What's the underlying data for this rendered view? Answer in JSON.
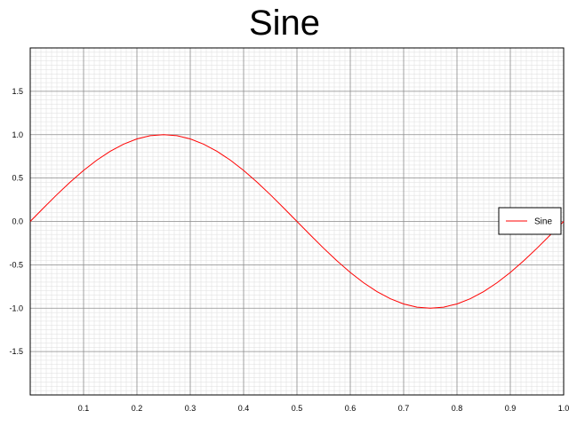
{
  "chart_data": {
    "type": "line",
    "title": "Sine",
    "xlabel": "",
    "ylabel": "",
    "xlim": [
      0,
      1
    ],
    "ylim": [
      -2,
      2
    ],
    "x_ticks": [
      0.1,
      0.2,
      0.3,
      0.4,
      0.5,
      0.6,
      0.7,
      0.8,
      0.9,
      1.0
    ],
    "x_tick_labels": [
      "0.1",
      "0.2",
      "0.3",
      "0.4",
      "0.5",
      "0.6",
      "0.7",
      "0.8",
      "0.9",
      "1.0"
    ],
    "y_ticks": [
      -1.5,
      -1.0,
      -0.5,
      0.0,
      0.5,
      1.0,
      1.5
    ],
    "y_tick_labels": [
      "-1.5",
      "-1.0",
      "-0.5",
      "0.0",
      "0.5",
      "1.0",
      "1.5"
    ],
    "grid": true,
    "legend_position": "right",
    "series": [
      {
        "name": "Sine",
        "color": "#ff0000",
        "x": [
          0.0,
          0.025,
          0.05,
          0.075,
          0.1,
          0.125,
          0.15,
          0.175,
          0.2,
          0.225,
          0.25,
          0.275,
          0.3,
          0.325,
          0.35,
          0.375,
          0.4,
          0.425,
          0.45,
          0.475,
          0.5,
          0.525,
          0.55,
          0.575,
          0.6,
          0.625,
          0.65,
          0.675,
          0.7,
          0.725,
          0.75,
          0.775,
          0.8,
          0.825,
          0.85,
          0.875,
          0.9,
          0.925,
          0.95,
          0.975,
          1.0
        ],
        "y": [
          0.0,
          0.156,
          0.309,
          0.454,
          0.588,
          0.707,
          0.809,
          0.891,
          0.951,
          0.988,
          1.0,
          0.988,
          0.951,
          0.891,
          0.809,
          0.707,
          0.588,
          0.454,
          0.309,
          0.156,
          0.0,
          -0.156,
          -0.309,
          -0.454,
          -0.588,
          -0.707,
          -0.809,
          -0.891,
          -0.951,
          -0.988,
          -1.0,
          -0.988,
          -0.951,
          -0.891,
          -0.809,
          -0.707,
          -0.588,
          -0.454,
          -0.309,
          -0.156,
          0.0
        ]
      }
    ]
  }
}
